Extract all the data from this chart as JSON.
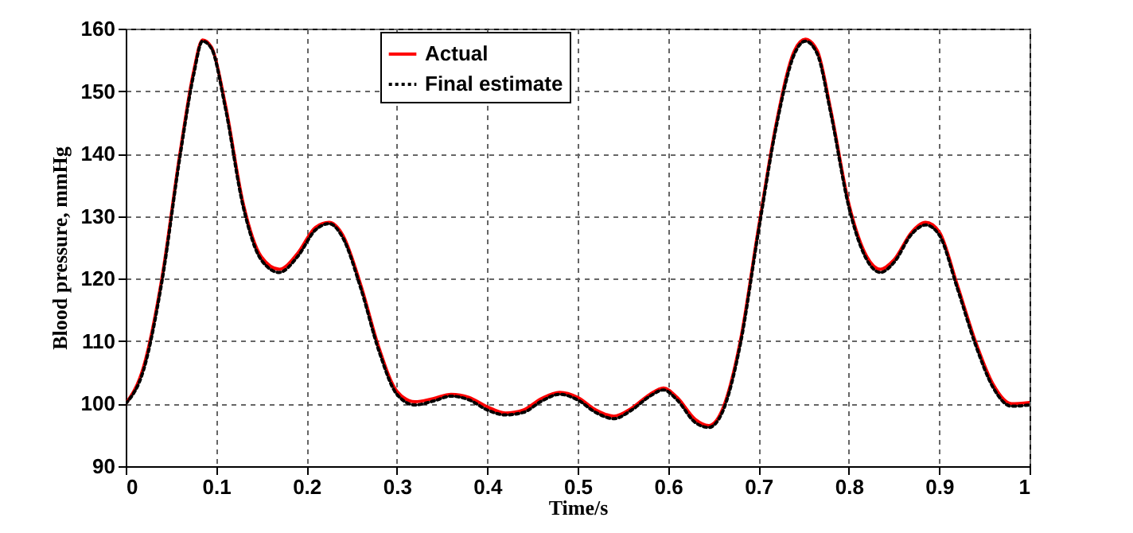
{
  "chart_data": {
    "type": "line",
    "xlabel": "Time/s",
    "ylabel": "Blood pressure, mmHg",
    "x": [
      0,
      0.02,
      0.04,
      0.06,
      0.075,
      0.085,
      0.095,
      0.11,
      0.13,
      0.15,
      0.17,
      0.19,
      0.21,
      0.225,
      0.24,
      0.26,
      0.28,
      0.3,
      0.32,
      0.34,
      0.36,
      0.38,
      0.4,
      0.42,
      0.44,
      0.46,
      0.48,
      0.5,
      0.52,
      0.54,
      0.56,
      0.58,
      0.595,
      0.61,
      0.63,
      0.645,
      0.66,
      0.68,
      0.7,
      0.72,
      0.74,
      0.752,
      0.765,
      0.78,
      0.8,
      0.82,
      0.835,
      0.85,
      0.87,
      0.885,
      0.9,
      0.92,
      0.94,
      0.96,
      0.98,
      1
    ],
    "series": [
      {
        "name": "Actual",
        "color": "#ff0000",
        "line_style": "solid",
        "values": [
          100,
          106,
          120,
          140,
          153,
          158.2,
          157,
          148,
          132,
          123.5,
          121.5,
          124,
          128.2,
          129,
          127,
          119,
          109,
          102,
          100.3,
          100.8,
          101.5,
          101,
          99.5,
          98.5,
          99,
          100.8,
          101.8,
          101,
          99,
          98,
          99.3,
          101.5,
          102.5,
          101,
          97.5,
          96.5,
          99,
          110,
          128,
          145,
          156.5,
          158.3,
          156.5,
          147,
          132,
          123.5,
          121.5,
          123,
          127.5,
          129,
          127.5,
          119,
          110,
          103,
          100,
          100.2
        ]
      },
      {
        "name": "Final estimate",
        "color": "#000000",
        "line_style": "dotted",
        "values": [
          100,
          105.5,
          119.5,
          139.5,
          152.5,
          158,
          156.8,
          147.5,
          131.5,
          123,
          121,
          123.5,
          127.8,
          128.8,
          126.6,
          118.5,
          108.5,
          101.5,
          99.8,
          100.4,
          101.2,
          100.6,
          99,
          98.2,
          98.6,
          100.4,
          101.5,
          100.6,
          98.6,
          97.6,
          99,
          101.2,
          102.2,
          100.6,
          97,
          96.2,
          98.6,
          109.5,
          127.5,
          144.5,
          156,
          158,
          156,
          146.5,
          131.5,
          123,
          121,
          122.6,
          127.2,
          128.6,
          127,
          118.5,
          109.5,
          102.5,
          99.6,
          99.8
        ]
      }
    ],
    "xlim": [
      0,
      1
    ],
    "xticks": [
      0,
      0.1,
      0.2,
      0.3,
      0.4,
      0.5,
      0.6,
      0.7,
      0.8,
      0.9,
      1
    ],
    "ylim": [
      90,
      160
    ],
    "yticks": [
      90,
      100,
      110,
      120,
      130,
      140,
      150,
      160
    ],
    "grid": true,
    "legend": "top"
  }
}
